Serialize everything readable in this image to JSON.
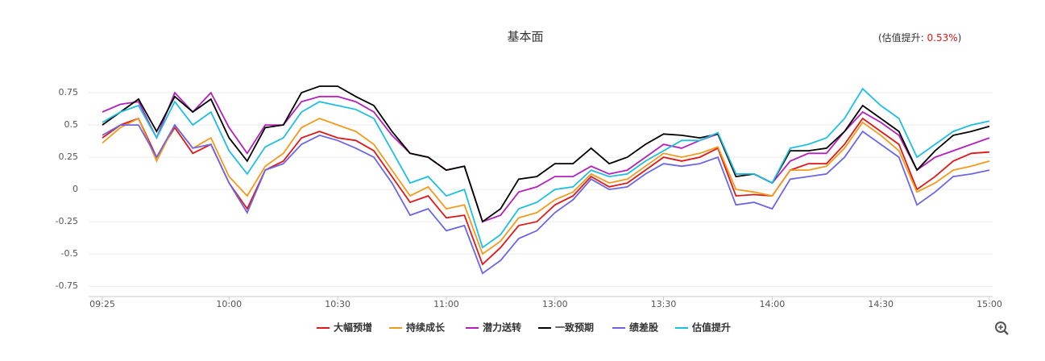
{
  "chart_data": {
    "type": "line",
    "title": "基本面",
    "annotation": [
      "(估值提升: ",
      "0.53%",
      ")"
    ],
    "categories": [
      "09:25",
      null,
      null,
      null,
      null,
      null,
      null,
      "10:00",
      null,
      null,
      null,
      null,
      null,
      "10:30",
      null,
      null,
      null,
      null,
      null,
      "11:00",
      null,
      null,
      null,
      null,
      null,
      "13:00",
      null,
      null,
      null,
      null,
      null,
      "13:30",
      null,
      null,
      null,
      null,
      null,
      "14:00",
      null,
      null,
      null,
      null,
      null,
      "14:30",
      null,
      null,
      null,
      null,
      null,
      "15:00"
    ],
    "ylim": [
      -0.83,
      1.0
    ],
    "yticks": [
      0.75,
      0.5,
      0.25,
      0,
      -0.25,
      -0.5,
      -0.75
    ],
    "grid": true,
    "series": [
      {
        "name": "大幅预增",
        "color": "#e01818",
        "values": [
          0.4,
          0.5,
          0.55,
          0.25,
          0.48,
          0.28,
          0.35,
          0.05,
          -0.15,
          0.15,
          0.22,
          0.4,
          0.45,
          0.4,
          0.38,
          0.3,
          0.1,
          -0.1,
          -0.05,
          -0.22,
          -0.2,
          -0.58,
          -0.45,
          -0.28,
          -0.25,
          -0.12,
          -0.05,
          0.1,
          0.02,
          0.05,
          0.15,
          0.25,
          0.22,
          0.25,
          0.32,
          -0.05,
          -0.04,
          -0.05,
          0.15,
          0.2,
          0.2,
          0.35,
          0.55,
          0.45,
          0.35,
          0.0,
          0.1,
          0.22,
          0.28,
          0.29
        ]
      },
      {
        "name": "持续成长",
        "color": "#f39a1c",
        "values": [
          0.36,
          0.48,
          0.55,
          0.22,
          0.5,
          0.32,
          0.4,
          0.1,
          -0.05,
          0.18,
          0.28,
          0.48,
          0.55,
          0.5,
          0.45,
          0.35,
          0.15,
          -0.05,
          0.02,
          -0.15,
          -0.12,
          -0.5,
          -0.4,
          -0.22,
          -0.18,
          -0.08,
          -0.02,
          0.12,
          0.05,
          0.08,
          0.18,
          0.28,
          0.25,
          0.28,
          0.33,
          0.0,
          -0.02,
          -0.05,
          0.15,
          0.15,
          0.18,
          0.32,
          0.52,
          0.42,
          0.3,
          -0.02,
          0.05,
          0.15,
          0.18,
          0.22
        ]
      },
      {
        "name": "潜力送转",
        "color": "#b520bd",
        "values": [
          0.6,
          0.66,
          0.68,
          0.4,
          0.75,
          0.6,
          0.75,
          0.48,
          0.28,
          0.5,
          0.5,
          0.68,
          0.72,
          0.72,
          0.68,
          0.6,
          0.42,
          0.28,
          0.25,
          0.15,
          0.18,
          -0.25,
          -0.2,
          -0.02,
          0.02,
          0.1,
          0.1,
          0.18,
          0.12,
          0.15,
          0.25,
          0.35,
          0.32,
          0.38,
          0.43,
          0.12,
          0.12,
          0.05,
          0.22,
          0.28,
          0.28,
          0.45,
          0.6,
          0.52,
          0.42,
          0.15,
          0.25,
          0.3,
          0.35,
          0.4
        ]
      },
      {
        "name": "一致预期",
        "color": "#000000",
        "values": [
          0.5,
          0.6,
          0.7,
          0.45,
          0.72,
          0.6,
          0.7,
          0.4,
          0.22,
          0.48,
          0.5,
          0.75,
          0.8,
          0.8,
          0.72,
          0.65,
          0.45,
          0.28,
          0.25,
          0.15,
          0.18,
          -0.25,
          -0.15,
          0.08,
          0.1,
          0.2,
          0.2,
          0.32,
          0.2,
          0.25,
          0.35,
          0.43,
          0.42,
          0.4,
          0.43,
          0.1,
          0.12,
          0.05,
          0.3,
          0.3,
          0.32,
          0.45,
          0.65,
          0.55,
          0.45,
          0.15,
          0.3,
          0.42,
          0.45,
          0.49
        ]
      },
      {
        "name": "绩差股",
        "color": "#6b66e6",
        "values": [
          0.42,
          0.5,
          0.5,
          0.25,
          0.5,
          0.32,
          0.35,
          0.05,
          -0.18,
          0.15,
          0.2,
          0.35,
          0.42,
          0.38,
          0.32,
          0.25,
          0.05,
          -0.2,
          -0.15,
          -0.32,
          -0.28,
          -0.65,
          -0.55,
          -0.38,
          -0.32,
          -0.18,
          -0.08,
          0.08,
          0.0,
          0.02,
          0.12,
          0.2,
          0.18,
          0.2,
          0.25,
          -0.12,
          -0.1,
          -0.15,
          0.08,
          0.1,
          0.12,
          0.25,
          0.45,
          0.35,
          0.25,
          -0.12,
          -0.02,
          0.1,
          0.12,
          0.15
        ]
      },
      {
        "name": "估值提升",
        "color": "#1dbfe0",
        "values": [
          0.52,
          0.6,
          0.65,
          0.4,
          0.68,
          0.5,
          0.6,
          0.3,
          0.12,
          0.33,
          0.4,
          0.6,
          0.68,
          0.65,
          0.62,
          0.55,
          0.3,
          0.05,
          0.1,
          -0.05,
          0.0,
          -0.45,
          -0.35,
          -0.15,
          -0.1,
          0.0,
          0.02,
          0.15,
          0.1,
          0.12,
          0.22,
          0.3,
          0.38,
          0.38,
          0.44,
          0.12,
          0.12,
          0.05,
          0.32,
          0.35,
          0.4,
          0.55,
          0.78,
          0.65,
          0.55,
          0.25,
          0.35,
          0.45,
          0.5,
          0.53
        ]
      }
    ]
  }
}
